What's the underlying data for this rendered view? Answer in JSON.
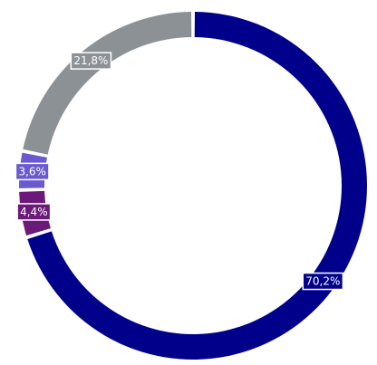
{
  "chart_data": {
    "type": "pie",
    "donut": true,
    "legend": "none",
    "title": "",
    "slices": [
      {
        "label": "70,2%",
        "value": 70.2,
        "color": "#00008B"
      },
      {
        "label": "4,4%",
        "value": 4.4,
        "color": "#6B1A7A"
      },
      {
        "label": "3,6%",
        "value": 3.6,
        "color": "#6A5ACD"
      },
      {
        "label": "21,8%",
        "value": 21.8,
        "color": "#8C9196"
      }
    ]
  }
}
